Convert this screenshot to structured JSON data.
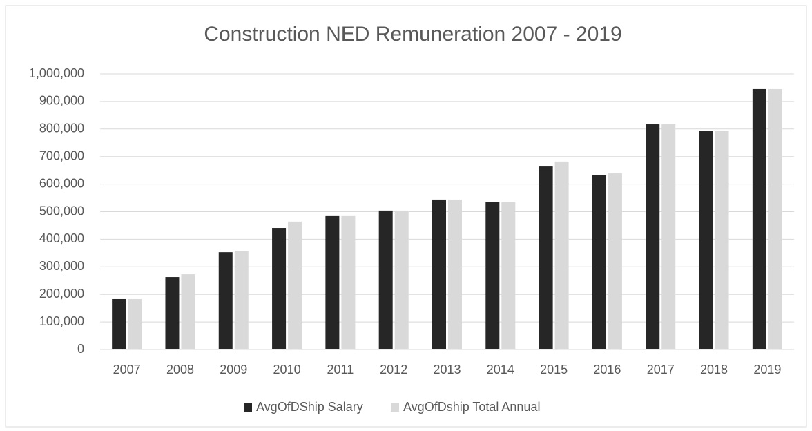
{
  "chart_data": {
    "type": "bar",
    "title": "Construction NED Remuneration 2007 - 2019",
    "categories": [
      "2007",
      "2008",
      "2009",
      "2010",
      "2011",
      "2012",
      "2013",
      "2014",
      "2015",
      "2016",
      "2017",
      "2018",
      "2019"
    ],
    "series": [
      {
        "name": "AvgOfDShip Salary",
        "color": "#262626",
        "values": [
          183000,
          263000,
          353000,
          441000,
          484000,
          504000,
          544000,
          536000,
          664000,
          634000,
          817000,
          794000,
          945000
        ]
      },
      {
        "name": "AvgOfDship Total Annual",
        "color": "#d9d9d9",
        "values": [
          183000,
          273000,
          358000,
          464000,
          484000,
          504000,
          544000,
          536000,
          682000,
          639000,
          817000,
          794000,
          945000
        ]
      }
    ],
    "ylim": [
      0,
      1000000
    ],
    "yticks": [
      0,
      {
        "value": 100000,
        "label": "100,000"
      },
      {
        "value": 200000,
        "label": "200,000"
      },
      {
        "value": 300000,
        "label": "300,000"
      },
      {
        "value": 400000,
        "label": "400,000"
      },
      {
        "value": 500000,
        "label": "500,000"
      },
      {
        "value": 600000,
        "label": "600,000"
      },
      {
        "value": 700000,
        "label": "700,000"
      },
      {
        "value": 800000,
        "label": "800,000"
      },
      {
        "value": 900000,
        "label": "900,000"
      },
      {
        "value": 1000000,
        "label": "1,000,000"
      }
    ],
    "grid": true,
    "legend": "bottom"
  }
}
